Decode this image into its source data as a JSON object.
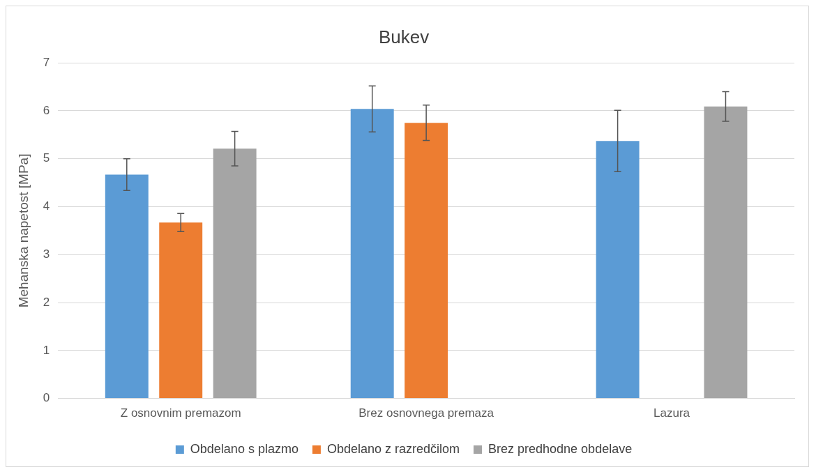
{
  "chart_data": {
    "type": "bar",
    "title": "Bukev",
    "ylabel": "Mehanska napetost [MPa]",
    "categories": [
      "Z osnovnim premazom",
      "Brez osnovnega premaza",
      "Lazura"
    ],
    "series": [
      {
        "name": "Obdelano s plazmo",
        "color": "#5b9bd5",
        "values": [
          4.67,
          6.04,
          5.37
        ],
        "errors": [
          0.33,
          0.48,
          0.64
        ]
      },
      {
        "name": "Obdelano z razredčilom",
        "color": "#ed7d31",
        "values": [
          3.67,
          5.75,
          null
        ],
        "errors": [
          0.19,
          0.37,
          null
        ]
      },
      {
        "name": "Brez predhodne obdelave",
        "color": "#a5a5a5",
        "values": [
          5.21,
          null,
          6.09
        ],
        "errors": [
          0.36,
          null,
          0.31
        ]
      }
    ],
    "ylim": [
      0,
      7
    ],
    "yticks": [
      0,
      1,
      2,
      3,
      4,
      5,
      6,
      7
    ],
    "grid": "y",
    "legend": "bottom"
  }
}
